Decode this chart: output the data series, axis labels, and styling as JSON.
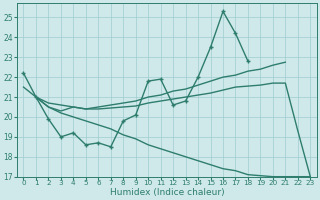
{
  "line1_x": [
    0,
    1,
    2,
    3,
    4,
    5,
    6,
    7,
    8,
    9,
    10,
    11,
    12,
    13,
    14,
    15,
    16,
    17,
    18
  ],
  "line1_y": [
    22.2,
    21.0,
    19.9,
    19.0,
    19.2,
    18.6,
    18.7,
    18.5,
    19.8,
    20.1,
    21.8,
    21.9,
    20.6,
    20.8,
    22.0,
    23.5,
    25.3,
    24.2,
    22.8
  ],
  "line2_x": [
    1,
    2,
    3,
    4,
    5,
    6,
    7,
    8,
    9,
    10,
    11,
    12,
    13,
    14,
    15,
    16,
    17,
    18,
    19,
    20,
    21
  ],
  "line2_y": [
    21.0,
    20.5,
    20.3,
    20.5,
    20.4,
    20.5,
    20.6,
    20.7,
    20.8,
    21.0,
    21.1,
    21.3,
    21.4,
    21.6,
    21.8,
    22.0,
    22.1,
    22.3,
    22.4,
    22.6,
    22.75
  ],
  "line3_x": [
    1,
    2,
    3,
    4,
    5,
    6,
    7,
    8,
    9,
    10,
    11,
    12,
    13,
    14,
    15,
    16,
    17,
    18,
    19,
    20,
    21,
    22,
    23
  ],
  "line3_y": [
    21.0,
    20.7,
    20.6,
    20.5,
    20.4,
    20.4,
    20.45,
    20.5,
    20.55,
    20.7,
    20.8,
    20.9,
    21.0,
    21.1,
    21.2,
    21.35,
    21.5,
    21.55,
    21.6,
    21.7,
    21.7,
    19.3,
    17.0
  ],
  "line4_x": [
    0,
    1,
    2,
    3,
    4,
    5,
    6,
    7,
    8,
    9,
    10,
    11,
    12,
    13,
    14,
    15,
    16,
    17,
    18,
    19,
    20,
    21,
    22,
    23
  ],
  "line4_y": [
    21.5,
    21.0,
    20.5,
    20.2,
    20.0,
    19.8,
    19.6,
    19.4,
    19.1,
    18.9,
    18.6,
    18.4,
    18.2,
    18.0,
    17.8,
    17.6,
    17.4,
    17.3,
    17.1,
    17.05,
    17.0,
    17.0,
    17.0,
    17.0
  ],
  "color": "#2e7d6d",
  "bg_color": "#cfe9eb",
  "grid_color": "#9fcdd0",
  "xlabel": "Humidex (Indice chaleur)",
  "xlim": [
    -0.5,
    23.5
  ],
  "ylim": [
    17,
    25.7
  ],
  "yticks": [
    17,
    18,
    19,
    20,
    21,
    22,
    23,
    24,
    25
  ],
  "xticks": [
    0,
    1,
    2,
    3,
    4,
    5,
    6,
    7,
    8,
    9,
    10,
    11,
    12,
    13,
    14,
    15,
    16,
    17,
    18,
    19,
    20,
    21,
    22,
    23
  ],
  "xtick_labels": [
    "0",
    "1",
    "2",
    "3",
    "4",
    "5",
    "6",
    "7",
    "8",
    "9",
    "10",
    "11",
    "12",
    "13",
    "14",
    "15",
    "16",
    "17",
    "18",
    "19",
    "20",
    "21",
    "22",
    "23"
  ]
}
